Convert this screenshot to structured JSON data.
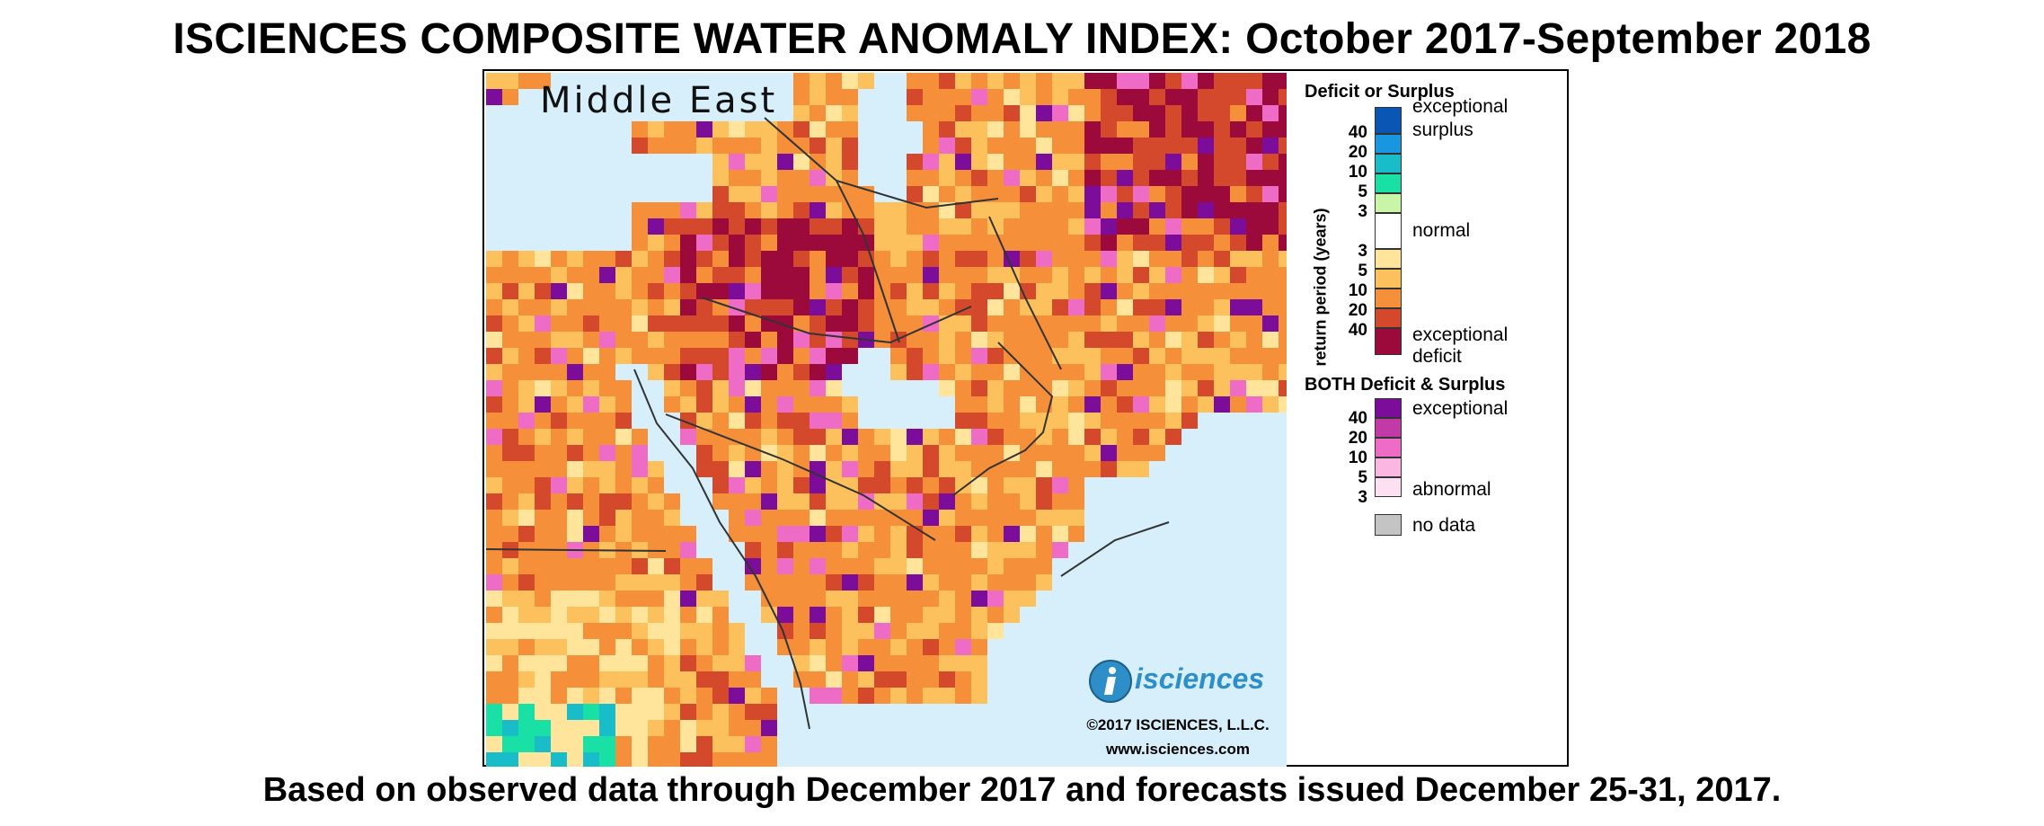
{
  "title": "ISCIENCES COMPOSITE WATER ANOMALY INDEX: October 2017-September 2018",
  "subtitle": "Based on observed data through December 2017 and forecasts issued December 25-31, 2017.",
  "map": {
    "region_label": "Middle East",
    "copyright": "©2017 ISCIENCES, L.L.C.",
    "website": "www.isciences.com",
    "logo_text": "isciences",
    "logo_icon": "i-circle-icon",
    "water_color": "#d6effa"
  },
  "legend": {
    "deficit_surplus_title": "Deficit or Surplus",
    "axis_label": "return period (years)",
    "surplus_colors": [
      "#0a56b4",
      "#1996e0",
      "#19bcc9",
      "#19e0a5",
      "#c8f5a8"
    ],
    "normal_color": "#ffffff",
    "deficit_colors": [
      "#ffe49b",
      "#fcc15c",
      "#f68f3a",
      "#d4492c",
      "#9c0a3c"
    ],
    "surplus_ticks": [
      "40",
      "20",
      "10",
      "5",
      "3"
    ],
    "deficit_ticks": [
      "3",
      "5",
      "10",
      "20",
      "40"
    ],
    "labels": {
      "exceptional_surplus_1": "exceptional",
      "exceptional_surplus_2": "surplus",
      "normal": "normal",
      "exceptional_deficit_1": "exceptional",
      "exceptional_deficit_2": "deficit"
    },
    "both_title": "BOTH Deficit & Surplus",
    "both_colors": [
      "#7b0d9a",
      "#c23aa8",
      "#ee6cc5",
      "#fbb6e2",
      "#fde0f1"
    ],
    "both_ticks": [
      "40",
      "20",
      "10",
      "5",
      "3"
    ],
    "both_labels": {
      "top": "exceptional",
      "bottom": "abnormal"
    },
    "no_data_color": "#c4c4c4",
    "no_data_label": "no data"
  }
}
